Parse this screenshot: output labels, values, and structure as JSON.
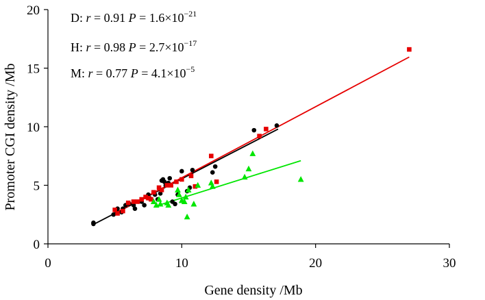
{
  "chart_data": {
    "type": "scatter",
    "title": "",
    "xlabel": "Gene density /Mb",
    "ylabel": "Promoter CGI density /Mb",
    "xlim": [
      0,
      30
    ],
    "ylim": [
      0,
      20
    ],
    "xticks": [
      0,
      10,
      20,
      30
    ],
    "yticks": [
      0,
      5,
      10,
      15,
      20
    ],
    "grid": false,
    "annotations": [
      {
        "prefix": "D: ",
        "r_label": "r",
        "r_text": " = 0.91 ",
        "p_label": "P",
        "p_text": " = 1.6×10",
        "p_exp": "−21"
      },
      {
        "prefix": "H: ",
        "r_label": "r",
        "r_text": " = 0.98 ",
        "p_label": "P",
        "p_text": " = 2.7×10",
        "p_exp": "−17"
      },
      {
        "prefix": "M: ",
        "r_label": "r",
        "r_text": " = 0.77 ",
        "p_label": "P",
        "p_text": " = 4.1×10",
        "p_exp": "−5"
      }
    ],
    "series": [
      {
        "name": "D",
        "marker": "circle",
        "color": "#000000",
        "fit": {
          "x": [
            3.3,
            17.2
          ],
          "y": [
            1.6,
            9.8
          ]
        },
        "points": [
          [
            3.4,
            1.8
          ],
          [
            3.4,
            1.7
          ],
          [
            4.9,
            2.5
          ],
          [
            5.1,
            2.8
          ],
          [
            5.2,
            3.0
          ],
          [
            5.5,
            2.7
          ],
          [
            5.6,
            3.0
          ],
          [
            5.8,
            3.3
          ],
          [
            6.1,
            3.4
          ],
          [
            6.4,
            3.3
          ],
          [
            6.5,
            3.0
          ],
          [
            7.0,
            3.6
          ],
          [
            7.2,
            3.3
          ],
          [
            7.5,
            4.2
          ],
          [
            7.6,
            3.9
          ],
          [
            8.0,
            4.2
          ],
          [
            8.2,
            3.8
          ],
          [
            8.4,
            4.3
          ],
          [
            8.5,
            5.4
          ],
          [
            8.6,
            5.5
          ],
          [
            8.7,
            5.3
          ],
          [
            8.8,
            5.0
          ],
          [
            9.0,
            5.2
          ],
          [
            9.1,
            5.6
          ],
          [
            9.3,
            3.6
          ],
          [
            9.5,
            3.4
          ],
          [
            9.7,
            4.2
          ],
          [
            10.0,
            6.2
          ],
          [
            10.4,
            4.5
          ],
          [
            10.6,
            4.8
          ],
          [
            10.8,
            6.3
          ],
          [
            11.0,
            4.9
          ],
          [
            12.3,
            6.1
          ],
          [
            12.5,
            6.6
          ],
          [
            15.4,
            9.7
          ],
          [
            17.1,
            10.1
          ]
        ]
      },
      {
        "name": "H",
        "marker": "square",
        "color": "#e60000",
        "fit": {
          "x": [
            4.9,
            27.0
          ],
          "y": [
            2.55,
            15.95
          ]
        },
        "points": [
          [
            5.0,
            2.9
          ],
          [
            5.2,
            2.6
          ],
          [
            5.6,
            2.8
          ],
          [
            6.0,
            3.5
          ],
          [
            6.4,
            3.6
          ],
          [
            6.7,
            3.6
          ],
          [
            7.0,
            3.8
          ],
          [
            7.3,
            4.0
          ],
          [
            7.5,
            3.9
          ],
          [
            7.7,
            3.8
          ],
          [
            7.9,
            4.4
          ],
          [
            8.3,
            4.8
          ],
          [
            8.5,
            4.6
          ],
          [
            8.9,
            5.0
          ],
          [
            9.2,
            5.0
          ],
          [
            9.6,
            5.3
          ],
          [
            10.0,
            5.5
          ],
          [
            10.7,
            5.8
          ],
          [
            11.0,
            4.9
          ],
          [
            12.2,
            7.5
          ],
          [
            12.6,
            5.3
          ],
          [
            15.8,
            9.2
          ],
          [
            16.3,
            9.8
          ],
          [
            27.0,
            16.6
          ]
        ]
      },
      {
        "name": "M",
        "marker": "triangle",
        "color": "#00e600",
        "fit": {
          "x": [
            8.0,
            18.9
          ],
          "y": [
            3.2,
            7.1
          ]
        },
        "points": [
          [
            7.9,
            3.6
          ],
          [
            8.1,
            3.3
          ],
          [
            8.3,
            3.8
          ],
          [
            8.4,
            3.4
          ],
          [
            8.9,
            3.5
          ],
          [
            9.0,
            3.3
          ],
          [
            9.7,
            4.6
          ],
          [
            9.8,
            4.2
          ],
          [
            10.0,
            3.7
          ],
          [
            10.2,
            3.6
          ],
          [
            10.3,
            4.0
          ],
          [
            10.4,
            2.3
          ],
          [
            10.5,
            4.6
          ],
          [
            10.9,
            3.4
          ],
          [
            11.2,
            5.0
          ],
          [
            12.2,
            5.2
          ],
          [
            12.3,
            4.9
          ],
          [
            14.7,
            5.7
          ],
          [
            15.0,
            6.4
          ],
          [
            15.3,
            7.7
          ],
          [
            18.9,
            5.5
          ]
        ]
      }
    ]
  }
}
